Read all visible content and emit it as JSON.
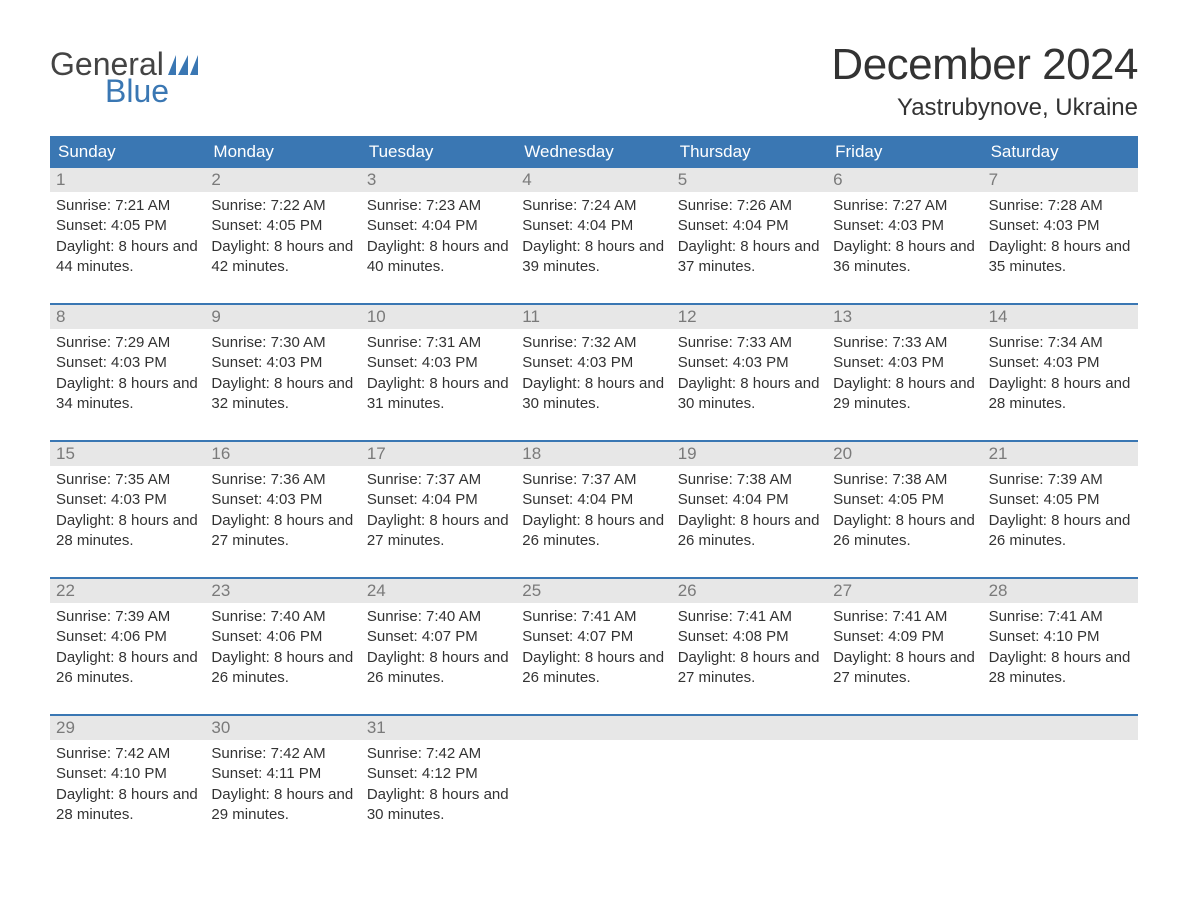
{
  "logo": {
    "line1": "General",
    "line2": "Blue"
  },
  "title": "December 2024",
  "location": "Yastrubynove, Ukraine",
  "colors": {
    "header_bg": "#3a77b3",
    "header_text": "#ffffff",
    "daynum_bg": "#e7e7e7",
    "daynum_text": "#7a7a7a",
    "body_text": "#333333",
    "accent": "#3a77b3",
    "page_bg": "#ffffff"
  },
  "weekdays": [
    "Sunday",
    "Monday",
    "Tuesday",
    "Wednesday",
    "Thursday",
    "Friday",
    "Saturday"
  ],
  "days": [
    {
      "num": "1",
      "sunrise": "7:21 AM",
      "sunset": "4:05 PM",
      "daylight": "8 hours and 44 minutes."
    },
    {
      "num": "2",
      "sunrise": "7:22 AM",
      "sunset": "4:05 PM",
      "daylight": "8 hours and 42 minutes."
    },
    {
      "num": "3",
      "sunrise": "7:23 AM",
      "sunset": "4:04 PM",
      "daylight": "8 hours and 40 minutes."
    },
    {
      "num": "4",
      "sunrise": "7:24 AM",
      "sunset": "4:04 PM",
      "daylight": "8 hours and 39 minutes."
    },
    {
      "num": "5",
      "sunrise": "7:26 AM",
      "sunset": "4:04 PM",
      "daylight": "8 hours and 37 minutes."
    },
    {
      "num": "6",
      "sunrise": "7:27 AM",
      "sunset": "4:03 PM",
      "daylight": "8 hours and 36 minutes."
    },
    {
      "num": "7",
      "sunrise": "7:28 AM",
      "sunset": "4:03 PM",
      "daylight": "8 hours and 35 minutes."
    },
    {
      "num": "8",
      "sunrise": "7:29 AM",
      "sunset": "4:03 PM",
      "daylight": "8 hours and 34 minutes."
    },
    {
      "num": "9",
      "sunrise": "7:30 AM",
      "sunset": "4:03 PM",
      "daylight": "8 hours and 32 minutes."
    },
    {
      "num": "10",
      "sunrise": "7:31 AM",
      "sunset": "4:03 PM",
      "daylight": "8 hours and 31 minutes."
    },
    {
      "num": "11",
      "sunrise": "7:32 AM",
      "sunset": "4:03 PM",
      "daylight": "8 hours and 30 minutes."
    },
    {
      "num": "12",
      "sunrise": "7:33 AM",
      "sunset": "4:03 PM",
      "daylight": "8 hours and 30 minutes."
    },
    {
      "num": "13",
      "sunrise": "7:33 AM",
      "sunset": "4:03 PM",
      "daylight": "8 hours and 29 minutes."
    },
    {
      "num": "14",
      "sunrise": "7:34 AM",
      "sunset": "4:03 PM",
      "daylight": "8 hours and 28 minutes."
    },
    {
      "num": "15",
      "sunrise": "7:35 AM",
      "sunset": "4:03 PM",
      "daylight": "8 hours and 28 minutes."
    },
    {
      "num": "16",
      "sunrise": "7:36 AM",
      "sunset": "4:03 PM",
      "daylight": "8 hours and 27 minutes."
    },
    {
      "num": "17",
      "sunrise": "7:37 AM",
      "sunset": "4:04 PM",
      "daylight": "8 hours and 27 minutes."
    },
    {
      "num": "18",
      "sunrise": "7:37 AM",
      "sunset": "4:04 PM",
      "daylight": "8 hours and 26 minutes."
    },
    {
      "num": "19",
      "sunrise": "7:38 AM",
      "sunset": "4:04 PM",
      "daylight": "8 hours and 26 minutes."
    },
    {
      "num": "20",
      "sunrise": "7:38 AM",
      "sunset": "4:05 PM",
      "daylight": "8 hours and 26 minutes."
    },
    {
      "num": "21",
      "sunrise": "7:39 AM",
      "sunset": "4:05 PM",
      "daylight": "8 hours and 26 minutes."
    },
    {
      "num": "22",
      "sunrise": "7:39 AM",
      "sunset": "4:06 PM",
      "daylight": "8 hours and 26 minutes."
    },
    {
      "num": "23",
      "sunrise": "7:40 AM",
      "sunset": "4:06 PM",
      "daylight": "8 hours and 26 minutes."
    },
    {
      "num": "24",
      "sunrise": "7:40 AM",
      "sunset": "4:07 PM",
      "daylight": "8 hours and 26 minutes."
    },
    {
      "num": "25",
      "sunrise": "7:41 AM",
      "sunset": "4:07 PM",
      "daylight": "8 hours and 26 minutes."
    },
    {
      "num": "26",
      "sunrise": "7:41 AM",
      "sunset": "4:08 PM",
      "daylight": "8 hours and 27 minutes."
    },
    {
      "num": "27",
      "sunrise": "7:41 AM",
      "sunset": "4:09 PM",
      "daylight": "8 hours and 27 minutes."
    },
    {
      "num": "28",
      "sunrise": "7:41 AM",
      "sunset": "4:10 PM",
      "daylight": "8 hours and 28 minutes."
    },
    {
      "num": "29",
      "sunrise": "7:42 AM",
      "sunset": "4:10 PM",
      "daylight": "8 hours and 28 minutes."
    },
    {
      "num": "30",
      "sunrise": "7:42 AM",
      "sunset": "4:11 PM",
      "daylight": "8 hours and 29 minutes."
    },
    {
      "num": "31",
      "sunrise": "7:42 AM",
      "sunset": "4:12 PM",
      "daylight": "8 hours and 30 minutes."
    }
  ],
  "labels": {
    "sunrise": "Sunrise: ",
    "sunset": "Sunset: ",
    "daylight": "Daylight: "
  },
  "layout": {
    "columns": 7,
    "rows": 5,
    "start_weekday_index": 0,
    "title_fontsize": 44,
    "location_fontsize": 24,
    "weekday_fontsize": 17,
    "daynum_fontsize": 17,
    "body_fontsize": 15
  }
}
